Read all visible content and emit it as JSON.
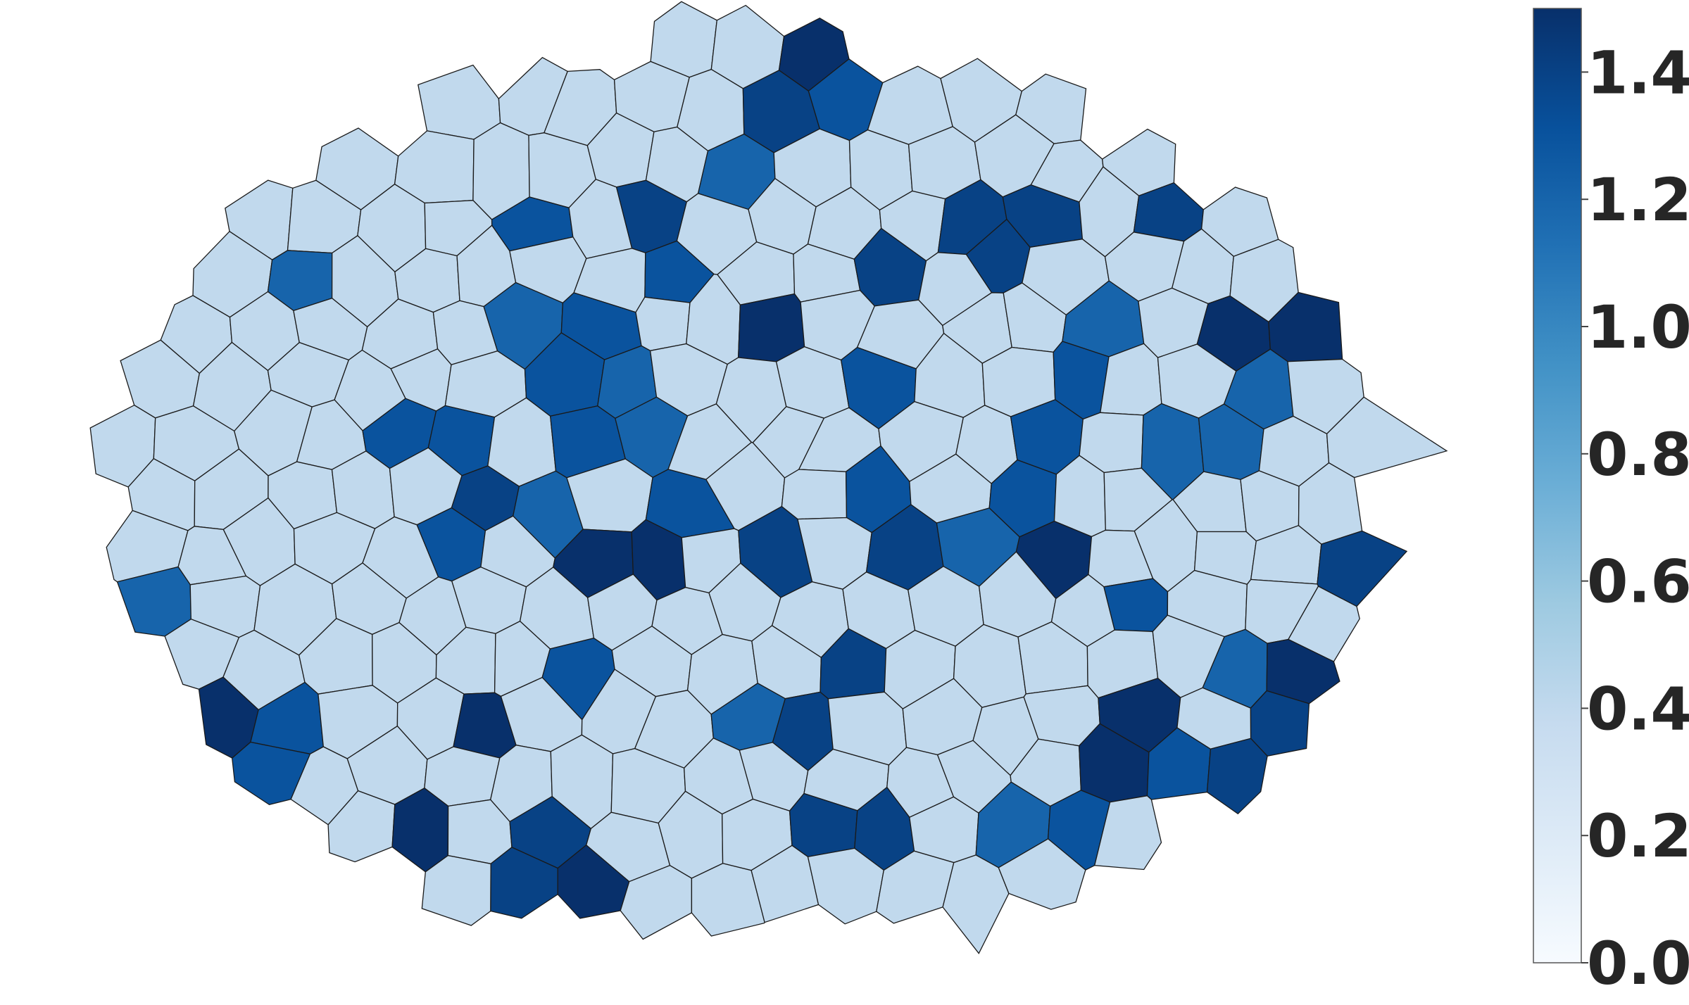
{
  "chart_data": {
    "type": "heatmap",
    "title": "",
    "xlabel": "",
    "ylabel": "",
    "colormap": "Blues",
    "color_range": [
      0.0,
      1.5
    ],
    "colorbar_ticks": [
      "0.0",
      "0.2",
      "0.4",
      "0.6",
      "0.8",
      "1.0",
      "1.2",
      "1.4"
    ],
    "colorbar_tick_values": [
      0.0,
      0.2,
      0.4,
      0.6,
      0.8,
      1.0,
      1.2,
      1.4
    ],
    "cell_count": 214,
    "value_levels": [
      0.4,
      1.2,
      1.3,
      1.4,
      1.5
    ],
    "grid": false,
    "legend": "colorbar-right"
  }
}
